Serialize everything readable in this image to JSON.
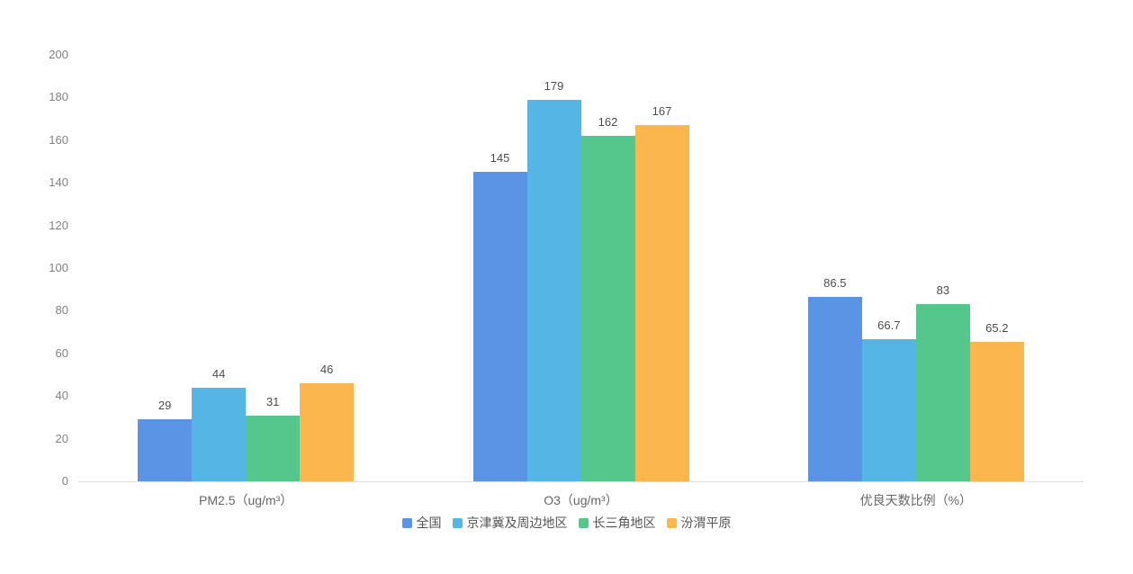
{
  "chart_data": {
    "type": "bar",
    "title": "",
    "categories": [
      "PM2.5（ug/m³）",
      "O3（ug/m³）",
      "优良天数比例（%）"
    ],
    "series": [
      {
        "name": "全国",
        "color": "#5B93E5",
        "values": [
          29,
          145,
          86.5
        ]
      },
      {
        "name": "京津冀及周边地区",
        "color": "#55B6E5",
        "values": [
          44,
          179,
          66.7
        ]
      },
      {
        "name": "长三角地区",
        "color": "#54C88C",
        "values": [
          31,
          162,
          83
        ]
      },
      {
        "name": "汾渭平原",
        "color": "#FCB64E",
        "values": [
          46,
          167,
          65.2
        ]
      }
    ],
    "y_axis": {
      "min": 0,
      "max": 200,
      "tick_step": 20,
      "ticks": [
        0,
        20,
        40,
        60,
        80,
        100,
        120,
        140,
        160,
        180,
        200
      ]
    },
    "grid": false,
    "data_labels": true,
    "legend_position": "bottom"
  },
  "colors": {
    "background": "#FFFFFF",
    "axis_line": "#E0E0E0",
    "tick_label": "#808080",
    "data_label": "#4D4D4D",
    "category_label": "#666666",
    "legend_label": "#555555"
  }
}
